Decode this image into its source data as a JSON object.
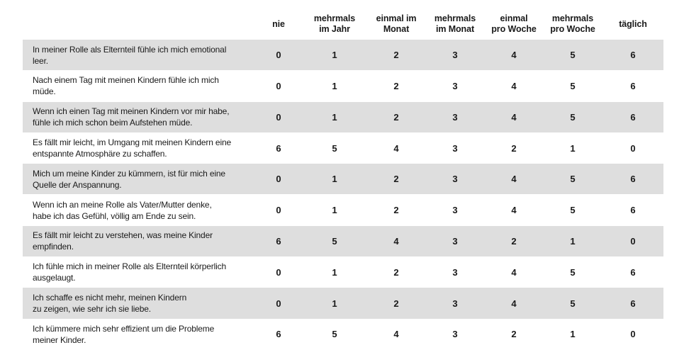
{
  "columns": [
    "nie",
    "mehrmals\nim Jahr",
    "einmal im\nMonat",
    "mehrmals\nim Monat",
    "einmal\npro Woche",
    "mehrmals\npro Woche",
    "täglich"
  ],
  "rows": [
    {
      "statement": "In meiner Rolle als Elternteil fühle ich mich emotional\nleer.",
      "values": [
        "0",
        "1",
        "2",
        "3",
        "4",
        "5",
        "6"
      ]
    },
    {
      "statement": "Nach einem Tag mit meinen Kindern fühle ich mich\nmüde.",
      "values": [
        "0",
        "1",
        "2",
        "3",
        "4",
        "5",
        "6"
      ]
    },
    {
      "statement": "Wenn ich einen Tag mit meinen Kindern vor mir habe,\nfühle ich mich schon beim Aufstehen müde.",
      "values": [
        "0",
        "1",
        "2",
        "3",
        "4",
        "5",
        "6"
      ]
    },
    {
      "statement": "Es fällt mir leicht, im Umgang mit meinen Kindern eine\nentspannte Atmosphäre zu schaffen.",
      "values": [
        "6",
        "5",
        "4",
        "3",
        "2",
        "1",
        "0"
      ]
    },
    {
      "statement": "Mich um meine Kinder zu kümmern, ist für mich eine\nQuelle der Anspannung.",
      "values": [
        "0",
        "1",
        "2",
        "3",
        "4",
        "5",
        "6"
      ]
    },
    {
      "statement": "Wenn ich an meine Rolle als Vater/Mutter denke,\nhabe ich das Gefühl, völlig am Ende zu sein.",
      "values": [
        "0",
        "1",
        "2",
        "3",
        "4",
        "5",
        "6"
      ]
    },
    {
      "statement": "Es fällt mir leicht zu verstehen, was meine Kinder\nempfinden.",
      "values": [
        "6",
        "5",
        "4",
        "3",
        "2",
        "1",
        "0"
      ]
    },
    {
      "statement": "Ich fühle mich in meiner Rolle als Elternteil körperlich\nausgelaugt.",
      "values": [
        "0",
        "1",
        "2",
        "3",
        "4",
        "5",
        "6"
      ]
    },
    {
      "statement": "Ich schaffe es nicht mehr, meinen Kindern\nzu zeigen, wie sehr ich sie liebe.",
      "values": [
        "0",
        "1",
        "2",
        "3",
        "4",
        "5",
        "6"
      ]
    },
    {
      "statement": "Ich kümmere mich sehr effizient um die Probleme\nmeiner Kinder.",
      "values": [
        "6",
        "5",
        "4",
        "3",
        "2",
        "1",
        "0"
      ]
    }
  ],
  "colors": {
    "row_shade": "#dedede",
    "text": "#1a1a1a"
  }
}
